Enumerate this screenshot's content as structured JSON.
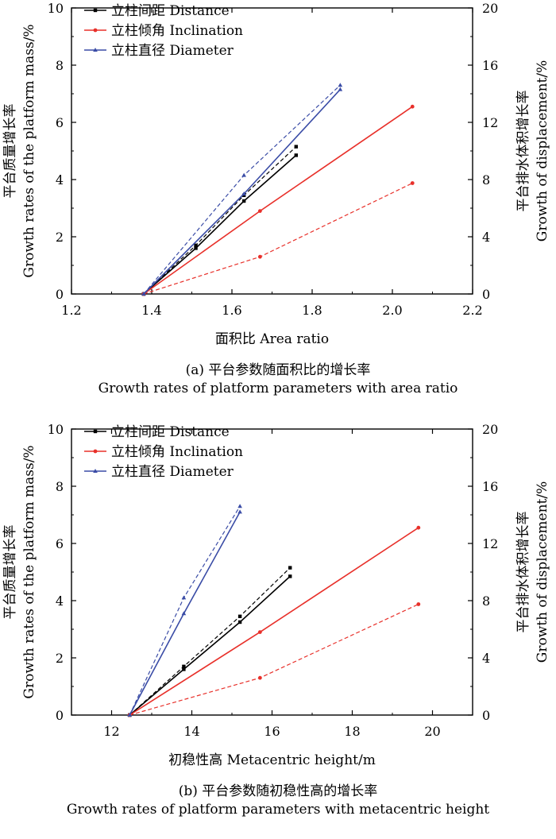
{
  "chart_data": [
    {
      "type": "line",
      "caption": {
        "cn": "(a) 平台参数随面积比的增长率",
        "en": "Growth rates of platform parameters with area ratio"
      },
      "xlabel": "面积比 Area ratio",
      "ylabel_left": [
        "平台质量增长率",
        "Growth rates of the platform mass/%"
      ],
      "ylabel_right": [
        "平台排水体积增长率",
        "Growth of displacement/%"
      ],
      "xlim": [
        1.2,
        2.2
      ],
      "ylim_left": [
        0,
        10
      ],
      "ylim_right": [
        0,
        20
      ],
      "xticks": [
        "1.2",
        "1.4",
        "1.6",
        "1.8",
        "2.0",
        "2.2"
      ],
      "yticks_left": [
        "0",
        "2",
        "4",
        "6",
        "8",
        "10"
      ],
      "yticks_right": [
        "0",
        "4",
        "8",
        "12",
        "16",
        "20"
      ],
      "legend_position": "top-left",
      "colors": {
        "Distance": "#000000",
        "Inclination": "#e8302a",
        "Diameter": "#3a4ca6"
      },
      "series": [
        {
          "name": "立柱间距 Distance",
          "key": "Distance",
          "marker": "square",
          "mass": {
            "x": [
              1.38,
              1.51,
              1.63,
              1.76
            ],
            "y": [
              0,
              1.6,
              3.25,
              4.85
            ]
          },
          "displacement": {
            "x": [
              1.38,
              1.51,
              1.63,
              1.76
            ],
            "y": [
              0,
              3.4,
              6.9,
              10.3
            ]
          }
        },
        {
          "name": "立柱倾角 Inclination",
          "key": "Inclination",
          "marker": "circle",
          "mass": {
            "x": [
              1.38,
              1.67,
              2.05
            ],
            "y": [
              0,
              2.9,
              6.55
            ]
          },
          "displacement": {
            "x": [
              1.38,
              1.67,
              2.05
            ],
            "y": [
              0,
              2.6,
              7.75
            ]
          }
        },
        {
          "name": "立柱直径 Diameter",
          "key": "Diameter",
          "marker": "triangle",
          "mass": {
            "x": [
              1.38,
              1.63,
              1.87
            ],
            "y": [
              0,
              3.5,
              7.15
            ]
          },
          "displacement": {
            "x": [
              1.38,
              1.63,
              1.87
            ],
            "y": [
              0,
              8.3,
              14.6
            ]
          }
        }
      ]
    },
    {
      "type": "line",
      "caption": {
        "cn": "(b) 平台参数随初稳性高的增长率",
        "en": "Growth rates of platform parameters with metacentric height"
      },
      "xlabel": "初稳性高 Metacentric height/m",
      "ylabel_left": [
        "平台质量增长率",
        "Growth rates of the platform mass/%"
      ],
      "ylabel_right": [
        "平台排水体积增长率",
        "Growth of displacement/%"
      ],
      "xlim": [
        11,
        21
      ],
      "ylim_left": [
        0,
        10
      ],
      "ylim_right": [
        0,
        20
      ],
      "xticks": [
        "12",
        "14",
        "16",
        "18",
        "20"
      ],
      "xtick_values": [
        12,
        14,
        16,
        18,
        20
      ],
      "yticks_left": [
        "0",
        "2",
        "4",
        "6",
        "8",
        "10"
      ],
      "yticks_right": [
        "0",
        "4",
        "8",
        "12",
        "16",
        "20"
      ],
      "legend_position": "top-left",
      "colors": {
        "Distance": "#000000",
        "Inclination": "#e8302a",
        "Diameter": "#3a4ca6"
      },
      "series": [
        {
          "name": "立柱间距 Distance",
          "key": "Distance",
          "marker": "square",
          "mass": {
            "x": [
              12.45,
              13.8,
              15.2,
              16.45
            ],
            "y": [
              0,
              1.6,
              3.25,
              4.85
            ]
          },
          "displacement": {
            "x": [
              12.45,
              13.8,
              15.2,
              16.45
            ],
            "y": [
              0,
              3.4,
              6.9,
              10.3
            ]
          }
        },
        {
          "name": "立柱倾角 Inclination",
          "key": "Inclination",
          "marker": "circle",
          "mass": {
            "x": [
              12.45,
              15.7,
              19.65
            ],
            "y": [
              0,
              2.9,
              6.55
            ]
          },
          "displacement": {
            "x": [
              12.45,
              15.7,
              19.65
            ],
            "y": [
              0,
              2.6,
              7.75
            ]
          }
        },
        {
          "name": "立柱直径 Diameter",
          "key": "Diameter",
          "marker": "triangle",
          "mass": {
            "x": [
              12.45,
              13.8,
              15.2
            ],
            "y": [
              0,
              3.55,
              7.1
            ]
          },
          "displacement": {
            "x": [
              12.45,
              13.8,
              15.2
            ],
            "y": [
              0,
              8.2,
              14.6
            ]
          }
        }
      ]
    }
  ]
}
